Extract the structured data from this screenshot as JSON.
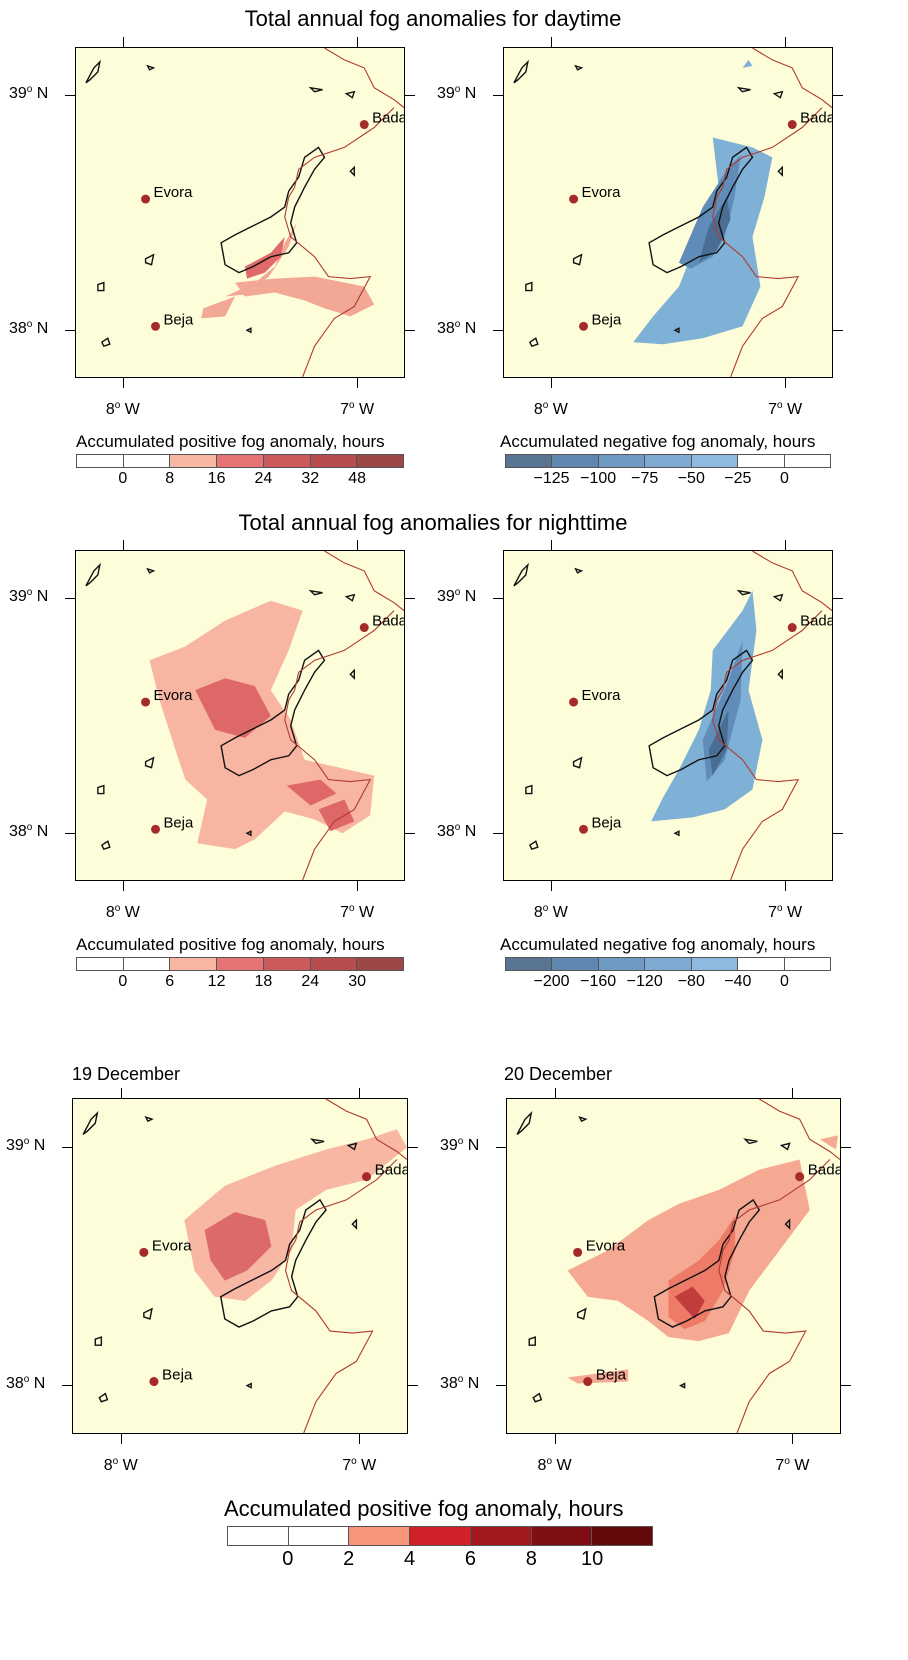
{
  "titles": {
    "daytime": "Total annual fog anomalies for daytime",
    "nighttime": "Total annual fog anomalies for nighttime"
  },
  "subtitles": {
    "dec19": "19 December",
    "dec20": "20 December"
  },
  "axes": {
    "lat_labels": [
      "39",
      "38"
    ],
    "lon_labels": [
      "8",
      "7"
    ],
    "lat_suffix": "N",
    "lon_suffix": "W",
    "degree": "o"
  },
  "cities": [
    "Evora",
    "Badajoz",
    "Beja"
  ],
  "badajoz_clipped": "Badajo",
  "legends": {
    "day_pos": {
      "title": "Accumulated positive fog anomaly, hours",
      "labels": [
        "0",
        "8",
        "16",
        "24",
        "32",
        "48"
      ],
      "colors": [
        "#ffffff",
        "#ffffff",
        "#f7b7a3",
        "#e57373",
        "#cc5a5a",
        "#b84d4d",
        "#9c4848"
      ]
    },
    "day_neg": {
      "title": "Accumulated negative fog anomaly, hours",
      "labels": [
        "−125",
        "−100",
        "−75",
        "−50",
        "−25",
        "0"
      ],
      "colors": [
        "#5a7494",
        "#5f87b0",
        "#6e9ac4",
        "#7eaad2",
        "#8fbadf",
        "#ffffff",
        "#ffffff"
      ]
    },
    "night_pos": {
      "title": "Accumulated positive fog anomaly, hours",
      "labels": [
        "0",
        "6",
        "12",
        "18",
        "24",
        "30"
      ],
      "colors": [
        "#ffffff",
        "#ffffff",
        "#f7b7a3",
        "#e57373",
        "#cc5a5a",
        "#b84d4d",
        "#9c4848"
      ]
    },
    "night_neg": {
      "title": "Accumulated negative fog anomaly, hours",
      "labels": [
        "−200",
        "−160",
        "−120",
        "−80",
        "−40",
        "0"
      ],
      "colors": [
        "#5a7494",
        "#5f87b0",
        "#6e9ac4",
        "#7eaad2",
        "#8fbadf",
        "#ffffff",
        "#ffffff"
      ]
    },
    "dec_pos": {
      "title": "Accumulated positive fog anomaly, hours",
      "labels": [
        "0",
        "2",
        "4",
        "6",
        "8",
        "10"
      ],
      "colors": [
        "#ffffff",
        "#ffffff",
        "#f7957a",
        "#d12027",
        "#a3181c",
        "#7f0e12",
        "#640a0d"
      ]
    }
  },
  "colors": {
    "map_bg": "#fdfdda",
    "border_line": "#b03a2e",
    "city_dot": "#a52a2a"
  }
}
